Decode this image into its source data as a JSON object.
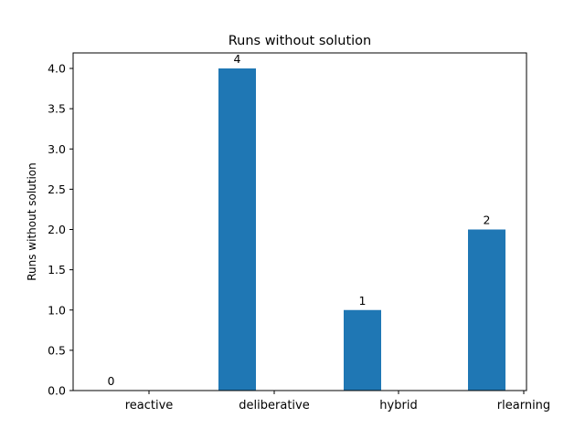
{
  "chart_data": {
    "type": "bar",
    "title": "Runs without solution",
    "xlabel": "",
    "ylabel": "Runs without solution",
    "categories": [
      "reactive",
      "deliberative",
      "hybrid",
      "rlearning"
    ],
    "values": [
      0,
      4,
      1,
      2
    ],
    "data_labels": [
      "0",
      "4",
      "1",
      "2"
    ],
    "ylim": [
      0,
      4.0
    ],
    "yticks": [
      "0.0",
      "0.5",
      "1.0",
      "1.5",
      "2.0",
      "2.5",
      "3.0",
      "3.5",
      "4.0"
    ],
    "bar_color": "#1f77b4",
    "grid": false
  }
}
